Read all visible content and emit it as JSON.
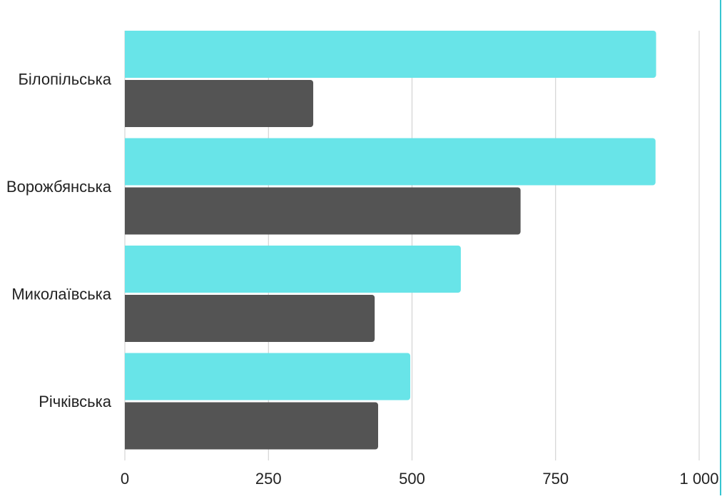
{
  "chart_data": {
    "type": "bar",
    "orientation": "horizontal",
    "categories": [
      "Білопільська",
      "Ворожбянська",
      "Миколаївська",
      "Річківська"
    ],
    "series": [
      {
        "values": [
          925,
          924,
          585,
          497
        ],
        "color": "#68e4e8"
      },
      {
        "values": [
          328,
          689,
          435,
          441
        ],
        "color": "#545454"
      }
    ],
    "xlim": [
      0,
      1000
    ],
    "xticks": [
      {
        "value": 0,
        "label": "0"
      },
      {
        "value": 250,
        "label": "250"
      },
      {
        "value": 500,
        "label": "500"
      },
      {
        "value": 750,
        "label": "750"
      },
      {
        "value": 1000,
        "label": "1 000"
      }
    ],
    "grid": true,
    "legend": "none",
    "title": "",
    "xlabel": "",
    "ylabel": ""
  },
  "colors": {
    "grid": "#cccccc",
    "frame_accent": "#36c5d1",
    "text": "#222222"
  }
}
